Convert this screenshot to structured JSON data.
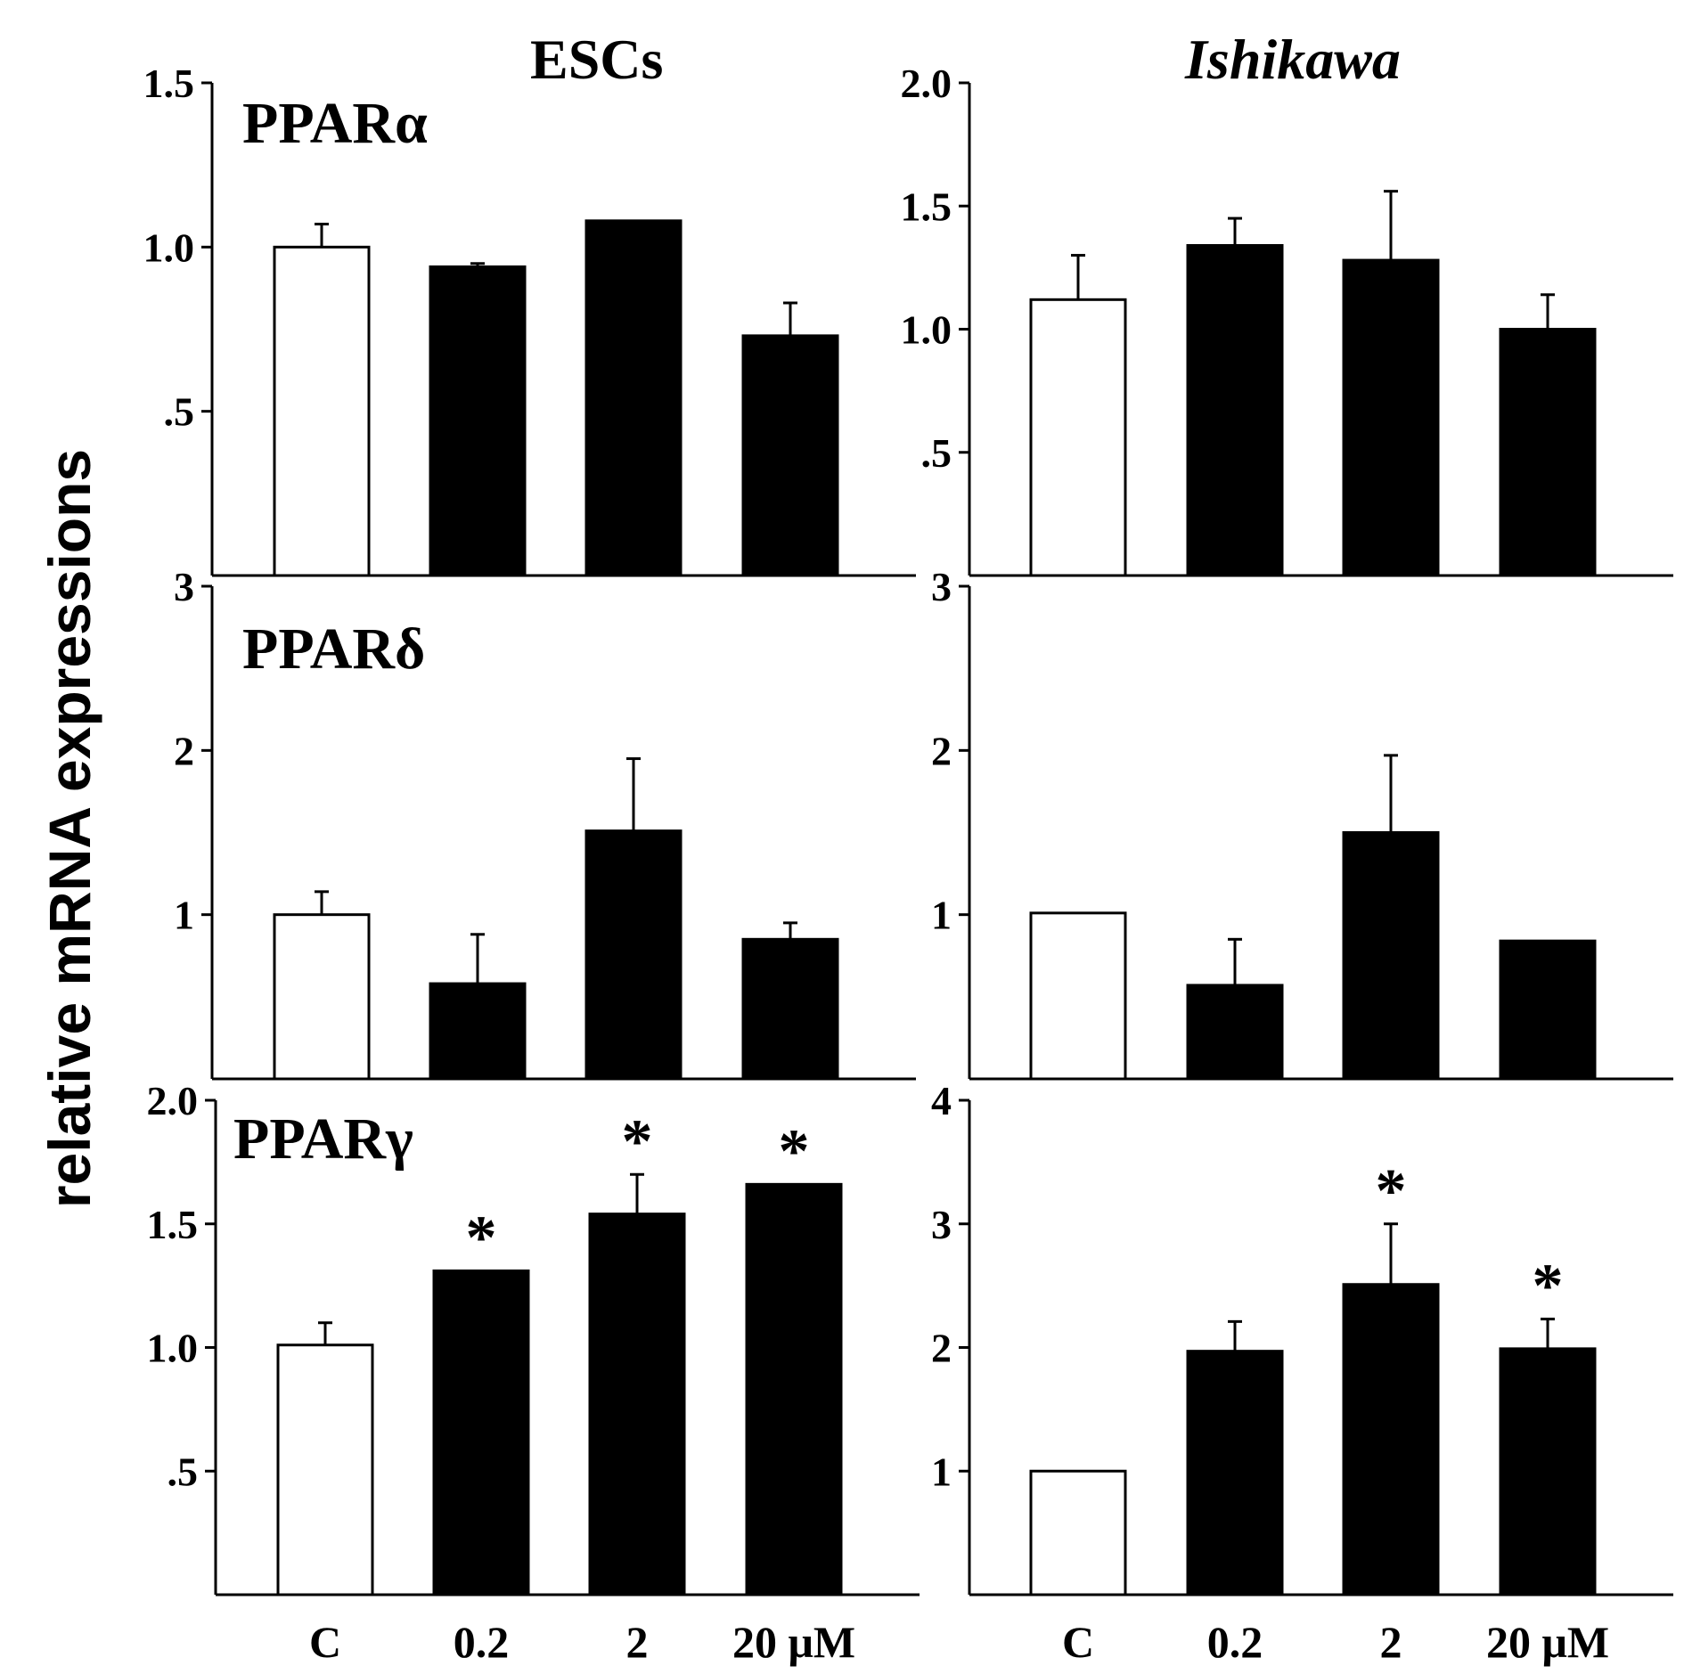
{
  "figure": {
    "ylabel": "relative mRNA expressions",
    "column_titles": [
      "ESCs",
      "Ishikawa"
    ]
  },
  "chart_data": [
    {
      "type": "bar",
      "panel": "ESCs",
      "gene": "PPARα",
      "categories": [
        "C",
        "0.2",
        "2",
        "20 μM"
      ],
      "values": [
        1.0,
        0.94,
        1.08,
        0.73
      ],
      "errors": [
        0.07,
        0.01,
        0.0,
        0.1
      ],
      "ylim": [
        0,
        1.5
      ],
      "ytick_values": [
        0.5,
        1.0,
        1.5
      ],
      "ytick_labels": [
        ".5",
        "1.0",
        "1.5"
      ],
      "significance": [
        "",
        "",
        "",
        ""
      ],
      "bar_colors": [
        "#ffffff",
        "#000000",
        "#000000",
        "#000000"
      ]
    },
    {
      "type": "bar",
      "panel": "ESCs",
      "gene": "PPARδ",
      "categories": [
        "C",
        "0.2",
        "2",
        "20 μM"
      ],
      "values": [
        1.0,
        0.58,
        1.51,
        0.85
      ],
      "errors": [
        0.14,
        0.3,
        0.44,
        0.1
      ],
      "ylim": [
        0,
        3
      ],
      "ytick_values": [
        1,
        2,
        3
      ],
      "ytick_labels": [
        "1",
        "2",
        "3"
      ],
      "significance": [
        "",
        "",
        "",
        ""
      ],
      "bar_colors": [
        "#ffffff",
        "#000000",
        "#000000",
        "#000000"
      ]
    },
    {
      "type": "bar",
      "panel": "ESCs",
      "gene": "PPARγ",
      "categories": [
        "C",
        "0.2",
        "2",
        "20 μM"
      ],
      "values": [
        1.01,
        1.31,
        1.54,
        1.66
      ],
      "errors": [
        0.09,
        0.0,
        0.16,
        0.0
      ],
      "ylim": [
        0,
        2.0
      ],
      "ytick_values": [
        0.5,
        1.0,
        1.5,
        2.0
      ],
      "ytick_labels": [
        ".5",
        "1.0",
        "1.5",
        "2.0"
      ],
      "significance": [
        "",
        "*",
        "*",
        "*"
      ],
      "bar_colors": [
        "#ffffff",
        "#000000",
        "#000000",
        "#000000"
      ]
    },
    {
      "type": "bar",
      "panel": "Ishikawa",
      "gene": "PPARα",
      "categories": [
        "C",
        "0.2",
        "2",
        "20 μM"
      ],
      "values": [
        1.12,
        1.34,
        1.28,
        1.0
      ],
      "errors": [
        0.18,
        0.11,
        0.28,
        0.14
      ],
      "ylim": [
        0,
        2.0
      ],
      "ytick_values": [
        0.5,
        1.0,
        1.5,
        2.0
      ],
      "ytick_labels": [
        ".5",
        "1.0",
        "1.5",
        "2.0"
      ],
      "significance": [
        "",
        "",
        "",
        ""
      ],
      "bar_colors": [
        "#ffffff",
        "#000000",
        "#000000",
        "#000000"
      ]
    },
    {
      "type": "bar",
      "panel": "Ishikawa",
      "gene": "PPARδ",
      "categories": [
        "C",
        "0.2",
        "2",
        "20 μM"
      ],
      "values": [
        1.01,
        0.57,
        1.5,
        0.84
      ],
      "errors": [
        0.0,
        0.28,
        0.47,
        0.0
      ],
      "ylim": [
        0,
        3
      ],
      "ytick_values": [
        1,
        2,
        3
      ],
      "ytick_labels": [
        "1",
        "2",
        "3"
      ],
      "significance": [
        "",
        "",
        "",
        ""
      ],
      "bar_colors": [
        "#ffffff",
        "#000000",
        "#000000",
        "#000000"
      ]
    },
    {
      "type": "bar",
      "panel": "Ishikawa",
      "gene": "PPARγ",
      "categories": [
        "C",
        "0.2",
        "2",
        "20 μM"
      ],
      "values": [
        1.0,
        1.97,
        2.51,
        1.99
      ],
      "errors": [
        0.0,
        0.24,
        0.49,
        0.24
      ],
      "ylim": [
        0,
        4
      ],
      "ytick_values": [
        1,
        2,
        3,
        4
      ],
      "ytick_labels": [
        "1",
        "2",
        "3",
        "4"
      ],
      "significance": [
        "",
        "",
        "*",
        "*"
      ],
      "bar_colors": [
        "#ffffff",
        "#000000",
        "#000000",
        "#000000"
      ]
    }
  ]
}
